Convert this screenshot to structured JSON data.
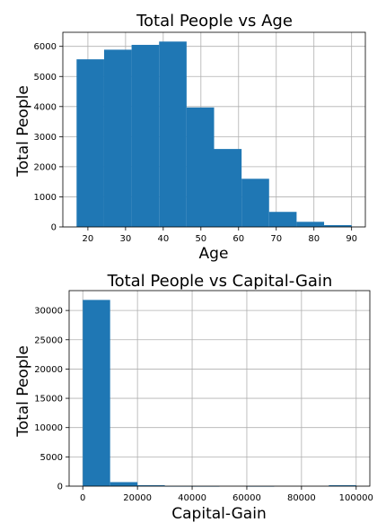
{
  "chart_data": [
    {
      "type": "bar",
      "title": "Total People vs Age",
      "xlabel": "Age",
      "ylabel": "Total People",
      "bin_edges": [
        17,
        24.3,
        31.6,
        38.9,
        46.2,
        53.5,
        60.8,
        68.1,
        75.4,
        82.7,
        90
      ],
      "values": [
        5570,
        5890,
        6050,
        6160,
        3970,
        2590,
        1600,
        500,
        170,
        60
      ],
      "xticks": [
        20,
        30,
        40,
        50,
        60,
        70,
        80,
        90
      ],
      "yticks": [
        0,
        1000,
        2000,
        3000,
        4000,
        5000,
        6000
      ],
      "xlim": [
        13.35,
        93.65
      ],
      "ylim": [
        0,
        6468
      ],
      "grid": true,
      "color": "#1f77b4"
    },
    {
      "type": "bar",
      "title": "Total People vs Capital-Gain",
      "xlabel": "Capital-Gain",
      "ylabel": "Total People",
      "bin_edges": [
        0,
        9999.9,
        19999.8,
        29999.7,
        39999.6,
        49999.5,
        59999.4,
        69999.3,
        79999.2,
        89999.1,
        99999
      ],
      "values": [
        31800,
        690,
        160,
        10,
        5,
        0,
        5,
        0,
        0,
        160
      ],
      "xticks": [
        0,
        20000,
        40000,
        60000,
        80000,
        100000
      ],
      "yticks": [
        0,
        5000,
        10000,
        15000,
        20000,
        25000,
        30000
      ],
      "xlim": [
        -5000,
        105000
      ],
      "ylim": [
        0,
        33390
      ],
      "grid": true,
      "color": "#1f77b4"
    }
  ]
}
